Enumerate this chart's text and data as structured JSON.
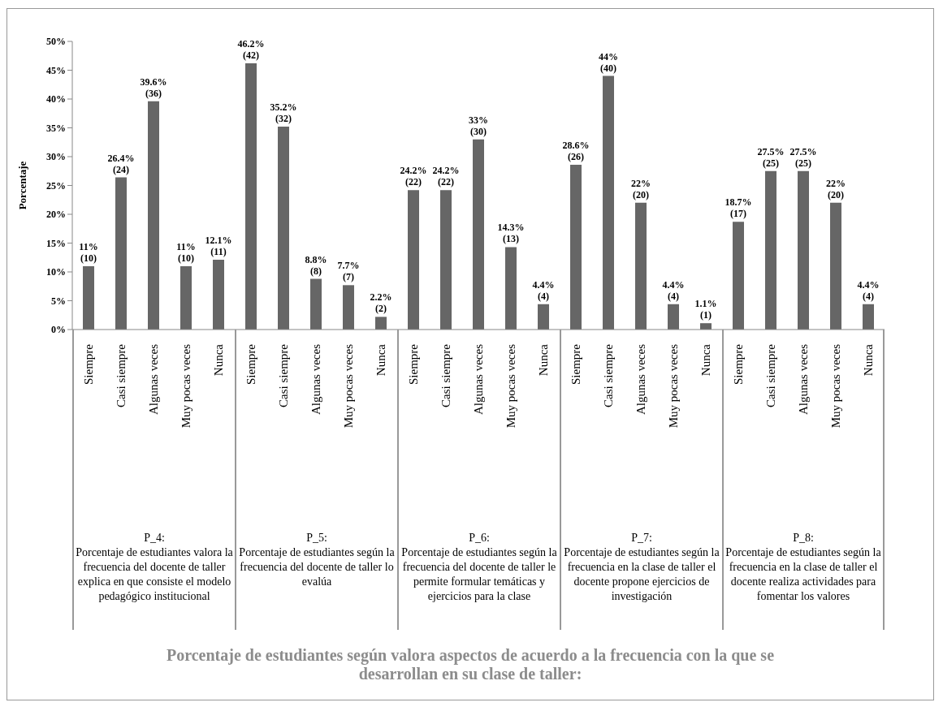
{
  "chart_data": {
    "type": "bar",
    "title": "Porcentaje de estudiantes según valora aspectos de acuerdo a la frecuencia con la que se desarrollan en su clase de taller:",
    "ylabel": "Porcentaje",
    "categories": [
      "Siempre",
      "Casi siempre",
      "Algunas veces",
      "Muy pocas veces",
      "Nunca",
      "Siempre",
      "Casi siempre",
      "Algunas veces",
      "Muy pocas veces",
      "Nunca",
      "Siempre",
      "Casi siempre",
      "Algunas veces",
      "Muy pocas veces",
      "Nunca",
      "Siempre",
      "Casi siempre",
      "Algunas veces",
      "Muy pocas veces",
      "Nunca",
      "Siempre",
      "Casi siempre",
      "Algunas veces",
      "Muy pocas veces",
      "Nunca"
    ],
    "values": [
      11,
      26.4,
      39.6,
      11,
      12.1,
      46.2,
      35.2,
      8.8,
      7.7,
      2.2,
      24.2,
      24.2,
      33,
      14.3,
      4.4,
      28.6,
      44,
      22,
      4.4,
      1.1,
      18.7,
      27.5,
      27.5,
      22,
      4.4
    ],
    "value_labels": [
      "11%\n(10)",
      "26.4%\n(24)",
      "39.6%\n(36)",
      "11%\n(10)",
      "12.1%\n(11)",
      "46.2%\n(42)",
      "35.2%\n(32)",
      "8.8%\n(8)",
      "7.7%\n(7)",
      "2.2%\n(2)",
      "24.2%\n(22)",
      "24.2%\n(22)",
      "33%\n(30)",
      "14.3%\n(13)",
      "4.4%\n(4)",
      "28.6%\n(26)",
      "44%\n(40)",
      "22%\n(20)",
      "4.4%\n(4)",
      "1.1%\n(1)",
      "18.7%\n(17)",
      "27.5%\n(25)",
      "27.5%\n(25)",
      "22%\n(20)",
      "4.4%\n(4)"
    ],
    "color": "#666666",
    "ylim": [
      0,
      50
    ],
    "yticks": [
      {
        "value": 0,
        "label": "0%"
      },
      {
        "value": 5,
        "label": "5%"
      },
      {
        "value": 10,
        "label": "10%"
      },
      {
        "value": 15,
        "label": "15%"
      },
      {
        "value": 20,
        "label": "20%"
      },
      {
        "value": 25,
        "label": "25%"
      },
      {
        "value": 30,
        "label": "30%"
      },
      {
        "value": 35,
        "label": "35%"
      },
      {
        "value": 40,
        "label": "40%"
      },
      {
        "value": 45,
        "label": "45%"
      },
      {
        "value": 50,
        "label": "50%"
      }
    ],
    "grid": false,
    "legend": false,
    "annotations": [
      "P_4:\nPorcentaje de estudiantes valora la frecuencia del docente de taller explica en que consiste el modelo pedagógico institucional",
      "P_5:\nPorcentaje de estudiantes según la frecuencia del docente de taller lo evalúa",
      "P_6:\nPorcentaje de estudiantes según la frecuencia del docente de taller le permite formular temáticas y ejercicios para la clase",
      "P_7:\nPorcentaje de estudiantes según la frecuencia en la clase de taller el docente propone ejercicios de investigación",
      "P_8:\nPorcentaje de estudiantes según la frecuencia en la clase de taller el docente realiza actividades para fomentar los valores"
    ]
  }
}
